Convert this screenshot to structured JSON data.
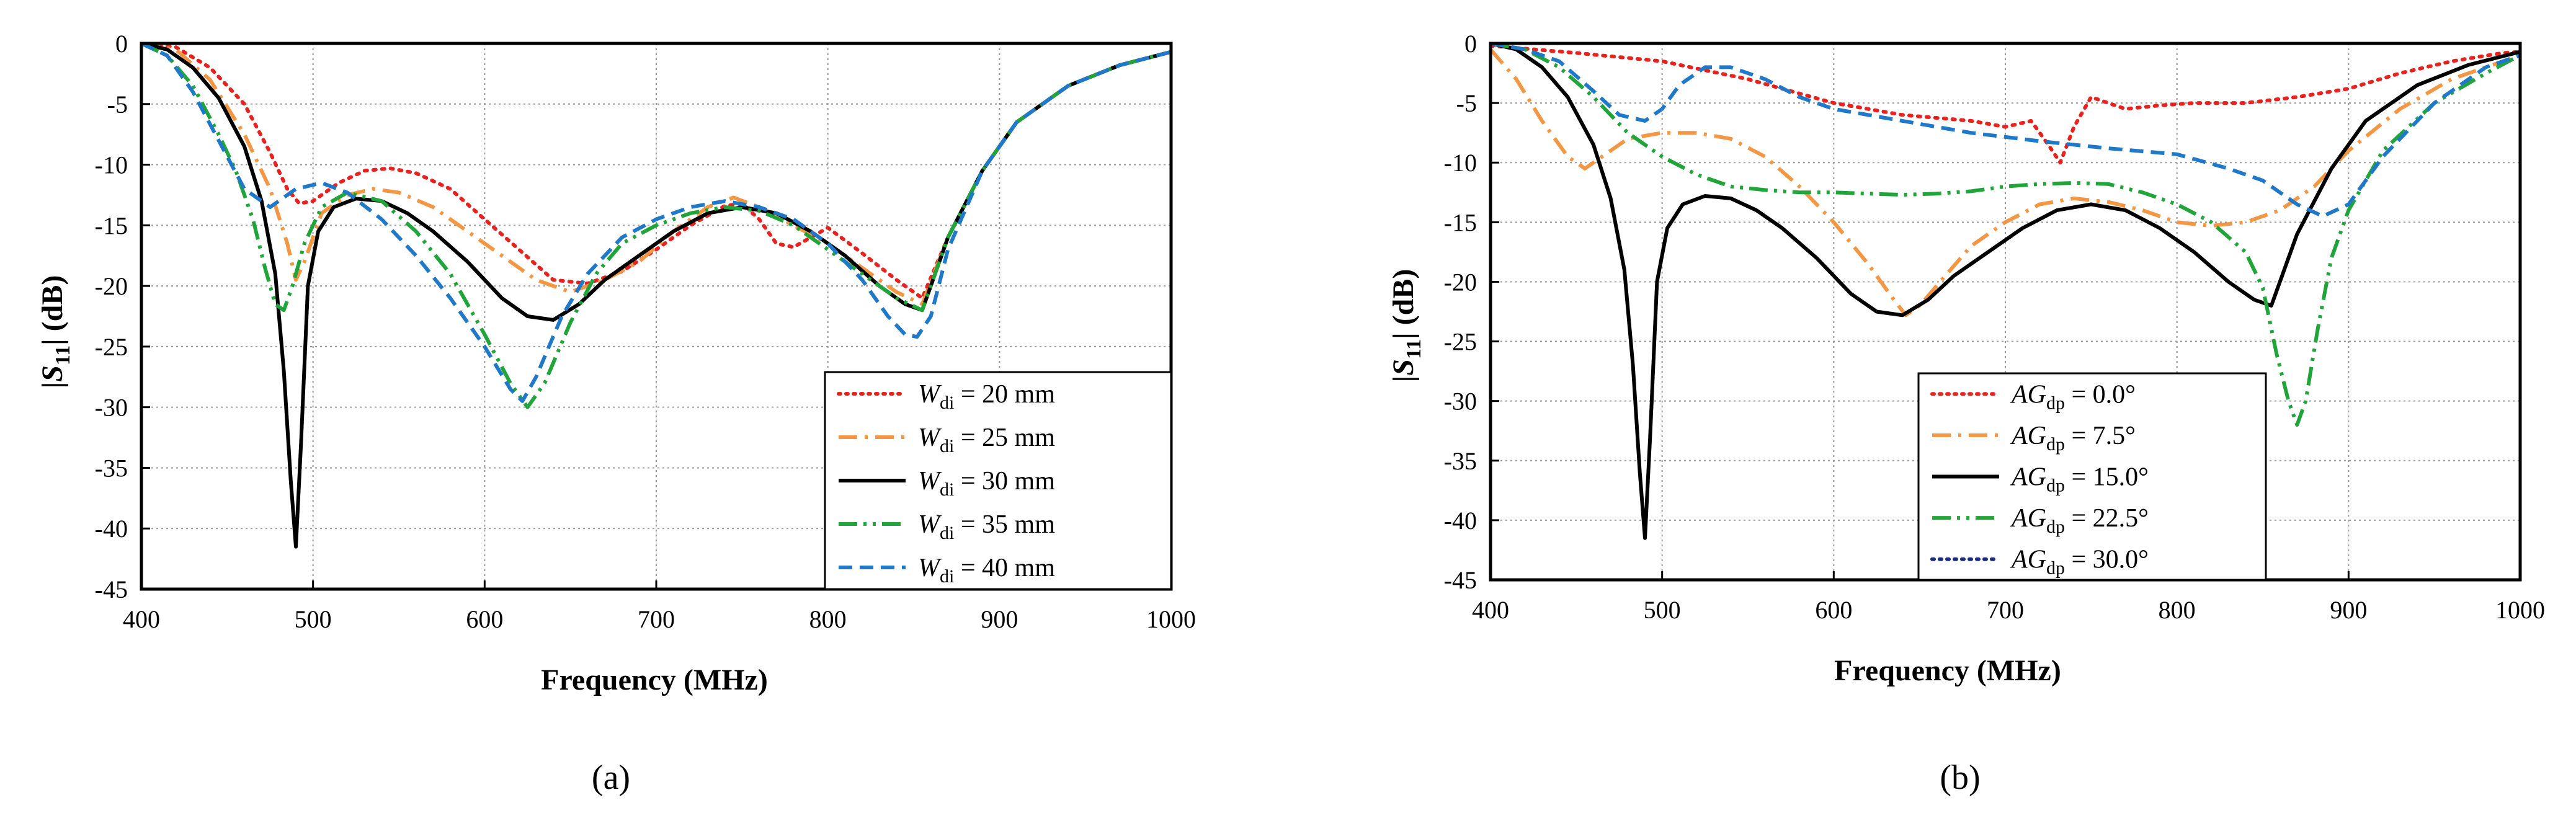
{
  "chart_data": [
    {
      "type": "line",
      "panel_label": "(a)",
      "xlabel": "Frequency (MHz)",
      "ylabel": "|S11| (dB)",
      "xlim": [
        400,
        1000
      ],
      "ylim": [
        -45,
        0
      ],
      "xticks": [
        400,
        500,
        600,
        700,
        800,
        900,
        1000
      ],
      "yticks": [
        0,
        -5,
        -10,
        -15,
        -20,
        -25,
        -30,
        -35,
        -40,
        -45
      ],
      "grid": true,
      "legend_position": "bottom-right",
      "legend_var": "W",
      "legend_sub": "di",
      "series": [
        {
          "name": "W_di = 20 mm",
          "legend_value": " = 20 mm",
          "color": "#e8231f",
          "dash": "dotted",
          "x": [
            400,
            420,
            440,
            460,
            475,
            485,
            492,
            500,
            515,
            530,
            545,
            560,
            580,
            600,
            620,
            640,
            660,
            680,
            700,
            720,
            740,
            750,
            760,
            770,
            780,
            790,
            800,
            820,
            840,
            855,
            870,
            890,
            910,
            940,
            970,
            1000
          ],
          "y": [
            0,
            -0.3,
            -2,
            -5,
            -9,
            -12,
            -13.2,
            -13,
            -11.5,
            -10.5,
            -10.3,
            -10.7,
            -12,
            -14.5,
            -17,
            -19.5,
            -19.8,
            -18.8,
            -17,
            -15,
            -13.4,
            -13.2,
            -14.5,
            -16.5,
            -16.8,
            -16,
            -15.2,
            -17.3,
            -19.5,
            -21,
            -16,
            -10.5,
            -6.5,
            -3.5,
            -1.8,
            -0.7
          ]
        },
        {
          "name": "W_di = 25 mm",
          "legend_value": " = 25 mm",
          "color": "#f39744",
          "dash": "dashdot",
          "x": [
            400,
            420,
            440,
            460,
            475,
            485,
            490,
            495,
            505,
            520,
            535,
            550,
            570,
            590,
            610,
            630,
            650,
            670,
            690,
            710,
            730,
            745,
            760,
            780,
            800,
            820,
            840,
            855,
            870,
            890,
            910,
            940,
            970,
            1000
          ],
          "y": [
            0,
            -0.5,
            -3,
            -7.5,
            -12,
            -16.5,
            -19.5,
            -18,
            -14,
            -12.5,
            -12,
            -12.3,
            -13.5,
            -15.5,
            -17.5,
            -19.5,
            -20.5,
            -19.5,
            -18,
            -15.5,
            -13.5,
            -12.7,
            -13.5,
            -15,
            -16.5,
            -18.5,
            -20.5,
            -21.5,
            -16,
            -10.5,
            -6.5,
            -3.5,
            -1.8,
            -0.7
          ]
        },
        {
          "name": "W_di = 30 mm",
          "legend_value": " = 30 mm",
          "color": "#000000",
          "dash": "solid",
          "x": [
            400,
            415,
            430,
            445,
            460,
            470,
            478,
            483,
            487,
            490,
            493,
            497,
            503,
            512,
            525,
            540,
            555,
            570,
            590,
            610,
            625,
            640,
            655,
            670,
            690,
            710,
            730,
            750,
            770,
            790,
            810,
            830,
            845,
            855,
            870,
            890,
            910,
            940,
            970,
            1000
          ],
          "y": [
            0,
            -0.5,
            -2,
            -4.5,
            -8.5,
            -13,
            -19,
            -27,
            -36,
            -41.5,
            -33,
            -20,
            -15.5,
            -13.5,
            -12.8,
            -13,
            -14,
            -15.5,
            -18,
            -21,
            -22.5,
            -22.8,
            -21.5,
            -19.5,
            -17.5,
            -15.5,
            -14,
            -13.5,
            -14,
            -15.5,
            -17.5,
            -20,
            -21.5,
            -22,
            -16,
            -10.5,
            -6.5,
            -3.5,
            -1.8,
            -0.7
          ]
        },
        {
          "name": "W_di = 35 mm",
          "legend_value": " = 35 mm",
          "color": "#21a53a",
          "dash": "dashdotdot",
          "x": [
            400,
            415,
            430,
            445,
            455,
            465,
            472,
            478,
            483,
            488,
            495,
            505,
            520,
            540,
            560,
            580,
            600,
            615,
            625,
            635,
            650,
            665,
            680,
            700,
            720,
            740,
            760,
            780,
            800,
            820,
            840,
            855,
            870,
            890,
            910,
            940,
            970,
            1000
          ],
          "y": [
            0,
            -1,
            -3.5,
            -7.5,
            -10.5,
            -14.5,
            -18.5,
            -21.5,
            -22,
            -20,
            -16.5,
            -13.5,
            -12.3,
            -13,
            -15.5,
            -19,
            -24,
            -28,
            -30,
            -28,
            -23,
            -19,
            -16.5,
            -15,
            -14,
            -13.5,
            -13.8,
            -15,
            -17,
            -19,
            -21,
            -22,
            -16,
            -10.5,
            -6.5,
            -3.5,
            -1.8,
            -0.7
          ]
        },
        {
          "name": "W_di = 40 mm",
          "legend_value": " = 40 mm",
          "color": "#1f78c8",
          "dash": "dashed",
          "x": [
            400,
            415,
            430,
            445,
            460,
            475,
            490,
            505,
            520,
            540,
            560,
            580,
            600,
            615,
            622,
            630,
            645,
            660,
            680,
            700,
            720,
            740,
            760,
            780,
            800,
            820,
            835,
            845,
            852,
            860,
            870,
            890,
            910,
            940,
            970,
            1000
          ],
          "y": [
            0,
            -1,
            -4,
            -8,
            -12,
            -13.5,
            -12,
            -11.5,
            -12.3,
            -14.5,
            -17.5,
            -21,
            -25,
            -28.5,
            -29.5,
            -27.5,
            -22.5,
            -19,
            -16,
            -14.5,
            -13.5,
            -13,
            -13.5,
            -14.5,
            -16.5,
            -19.5,
            -22.5,
            -24,
            -24.2,
            -22.5,
            -17,
            -10.5,
            -6.5,
            -3.5,
            -1.8,
            -0.7
          ]
        }
      ]
    },
    {
      "type": "line",
      "panel_label": "(b)",
      "xlabel": "Frequency (MHz)",
      "ylabel": "|S11| (dB)",
      "xlim": [
        400,
        1000
      ],
      "ylim": [
        -45,
        0
      ],
      "xticks": [
        400,
        500,
        600,
        700,
        800,
        900,
        1000
      ],
      "yticks": [
        0,
        -5,
        -10,
        -15,
        -20,
        -25,
        -30,
        -35,
        -40,
        -45
      ],
      "grid": true,
      "legend_position": "bottom-left",
      "legend_var": "AG",
      "legend_sub": "dp",
      "series": [
        {
          "name": "AG_dp = 0.0°",
          "legend_value": " = 0.0°",
          "color": "#e8231f",
          "dash": "dotted",
          "x": [
            400,
            450,
            500,
            550,
            600,
            640,
            680,
            700,
            715,
            725,
            732,
            740,
            750,
            760,
            770,
            790,
            810,
            840,
            870,
            900,
            930,
            960,
            990,
            1000
          ],
          "y": [
            -0.2,
            -0.8,
            -1.5,
            -3,
            -5,
            -6,
            -6.5,
            -7,
            -6.5,
            -8.5,
            -10,
            -7,
            -4.5,
            -5,
            -5.5,
            -5.2,
            -5,
            -5,
            -4.5,
            -3.8,
            -2.5,
            -1.5,
            -0.8,
            -0.7
          ]
        },
        {
          "name": "AG_dp = 7.5°",
          "legend_value": " = 7.5°",
          "color": "#f39744",
          "dash": "dashdot",
          "x": [
            400,
            415,
            430,
            445,
            455,
            465,
            480,
            500,
            520,
            540,
            560,
            580,
            600,
            620,
            635,
            642,
            650,
            665,
            680,
            700,
            720,
            740,
            760,
            780,
            800,
            820,
            840,
            860,
            880,
            900,
            930,
            960,
            1000
          ],
          "y": [
            -0.5,
            -3,
            -6.5,
            -9.5,
            -10.5,
            -9.5,
            -8,
            -7.5,
            -7.5,
            -8,
            -9.5,
            -12,
            -15,
            -18.5,
            -21.5,
            -22.8,
            -22,
            -19.5,
            -17,
            -15,
            -13.5,
            -13,
            -13.3,
            -14,
            -15,
            -15.3,
            -15,
            -14,
            -12,
            -9,
            -5.5,
            -3,
            -1
          ]
        },
        {
          "name": "AG_dp = 15.0°",
          "legend_value": " = 15.0°",
          "color": "#000000",
          "dash": "solid",
          "x": [
            400,
            415,
            430,
            445,
            460,
            470,
            478,
            483,
            487,
            490,
            493,
            497,
            503,
            512,
            525,
            540,
            555,
            570,
            590,
            610,
            625,
            640,
            655,
            670,
            690,
            710,
            730,
            750,
            770,
            790,
            810,
            830,
            845,
            855,
            870,
            890,
            910,
            940,
            970,
            1000
          ],
          "y": [
            0,
            -0.5,
            -2,
            -4.5,
            -8.5,
            -13,
            -19,
            -27,
            -36,
            -41.5,
            -33,
            -20,
            -15.5,
            -13.5,
            -12.8,
            -13,
            -14,
            -15.5,
            -18,
            -21,
            -22.5,
            -22.8,
            -21.5,
            -19.5,
            -17.5,
            -15.5,
            -14,
            -13.5,
            -14,
            -15.5,
            -17.5,
            -20,
            -21.5,
            -22,
            -16,
            -10.5,
            -6.5,
            -3.5,
            -1.8,
            -0.7
          ]
        },
        {
          "name": "AG_dp = 22.5°",
          "legend_value": " = 22.5°",
          "color": "#21a53a",
          "dash": "dashdotdot",
          "x": [
            400,
            420,
            440,
            460,
            480,
            500,
            520,
            540,
            560,
            580,
            600,
            620,
            640,
            660,
            680,
            700,
            720,
            740,
            760,
            780,
            800,
            820,
            840,
            850,
            858,
            865,
            870,
            875,
            882,
            890,
            900,
            920,
            950,
            980,
            1000
          ],
          "y": [
            0,
            -0.5,
            -2,
            -4.5,
            -7.5,
            -9.5,
            -11,
            -12,
            -12.3,
            -12.5,
            -12.5,
            -12.6,
            -12.7,
            -12.6,
            -12.4,
            -12,
            -11.8,
            -11.7,
            -11.8,
            -12.5,
            -13.5,
            -15,
            -17.5,
            -20.5,
            -26,
            -30,
            -32,
            -30,
            -24,
            -18,
            -14,
            -9,
            -5,
            -2.5,
            -1
          ]
        },
        {
          "name": "AG_dp = 30.0°",
          "legend_value": " = 30.0°",
          "color": "#1f78c8",
          "dash": "dashed",
          "x": [
            400,
            420,
            440,
            460,
            475,
            490,
            500,
            510,
            525,
            540,
            560,
            580,
            600,
            640,
            680,
            720,
            760,
            800,
            830,
            850,
            870,
            885,
            900,
            920,
            950,
            980,
            1000
          ],
          "y": [
            0,
            -0.5,
            -1.5,
            -4,
            -6,
            -6.5,
            -5.5,
            -3.5,
            -2,
            -2,
            -3,
            -4.5,
            -5.5,
            -6.5,
            -7.5,
            -8.2,
            -8.8,
            -9.3,
            -10.5,
            -11.5,
            -13.5,
            -14.5,
            -13.5,
            -9.5,
            -5,
            -2,
            -1
          ]
        }
      ],
      "legend_extra_entry": {
        "name": "AG_dp = 30.0°",
        "color": "#1a2a80",
        "dash": "dotted"
      }
    }
  ]
}
